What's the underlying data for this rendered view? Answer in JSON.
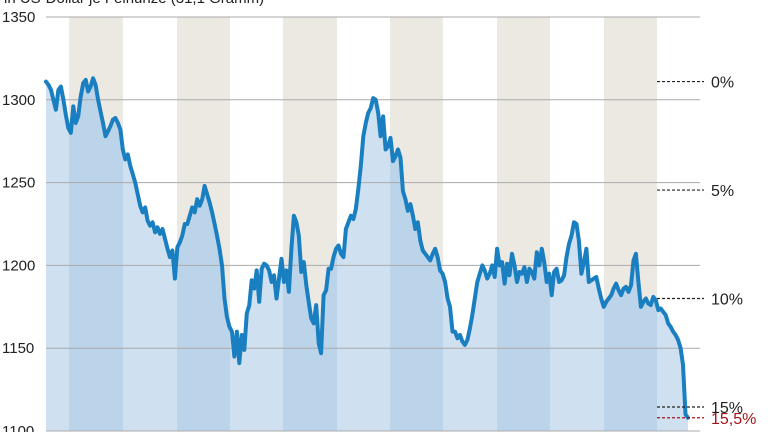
{
  "chart_data": {
    "type": "area",
    "title": "",
    "subtitle": "in US-Dollar je Feinunze (31,1 Gramm)",
    "xlabel": "",
    "ylabel": "",
    "ylim": [
      1100,
      1350
    ],
    "yticks": [
      1100,
      1150,
      1200,
      1250,
      1300,
      1350
    ],
    "grid": true,
    "colors": {
      "line": "#1a7fc1",
      "area": "#cfe0f0",
      "area_shaded": "#bcd4ea",
      "stripe": "#ece8e2",
      "grid": "#aaaaaa",
      "alert": "#a3151a"
    },
    "drawdown_reference": 1311,
    "drawdown_markers": [
      {
        "label": "0%",
        "value": 1311,
        "alert": false
      },
      {
        "label": "5%",
        "value": 1245.5,
        "alert": false
      },
      {
        "label": "10%",
        "value": 1180,
        "alert": false
      },
      {
        "label": "15%",
        "value": 1114.5,
        "alert": false
      },
      {
        "label": "15,5%",
        "value": 1108,
        "alert": true
      }
    ],
    "series": [
      {
        "values": [
          1311,
          1309,
          1306,
          1300,
          1294,
          1306,
          1308,
          1300,
          1291,
          1283,
          1280,
          1296,
          1286,
          1290,
          1302,
          1310,
          1312,
          1305,
          1308,
          1313,
          1309,
          1300,
          1293,
          1286,
          1278,
          1281,
          1284,
          1288,
          1289,
          1286,
          1282,
          1270,
          1264,
          1267,
          1260,
          1255,
          1250,
          1243,
          1236,
          1232,
          1235,
          1227,
          1224,
          1226,
          1220,
          1223,
          1219,
          1222,
          1216,
          1210,
          1205,
          1209,
          1192,
          1211,
          1214,
          1218,
          1225,
          1225,
          1230,
          1235,
          1232,
          1240,
          1236,
          1240,
          1248,
          1243,
          1238,
          1232,
          1225,
          1218,
          1210,
          1200,
          1180,
          1169,
          1163,
          1160,
          1145,
          1160,
          1141,
          1158,
          1149,
          1171,
          1176,
          1191,
          1186,
          1197,
          1178,
          1198,
          1201,
          1200,
          1197,
          1190,
          1194,
          1180,
          1192,
          1204,
          1190,
          1197,
          1184,
          1210,
          1230,
          1226,
          1218,
          1196,
          1202,
          1188,
          1178,
          1168,
          1165,
          1176,
          1153,
          1147,
          1182,
          1185,
          1198,
          1198,
          1205,
          1210,
          1212,
          1207,
          1205,
          1222,
          1226,
          1230,
          1228,
          1234,
          1246,
          1260,
          1278,
          1286,
          1292,
          1295,
          1301,
          1300,
          1292,
          1278,
          1290,
          1270,
          1272,
          1277,
          1263,
          1266,
          1270,
          1265,
          1245,
          1240,
          1233,
          1237,
          1230,
          1222,
          1226,
          1215,
          1209,
          1207,
          1205,
          1203,
          1207,
          1210,
          1205,
          1197,
          1195,
          1190,
          1180,
          1175,
          1160,
          1160,
          1156,
          1158,
          1154,
          1152,
          1155,
          1162,
          1170,
          1180,
          1190,
          1195,
          1200,
          1197,
          1192,
          1195,
          1200,
          1193,
          1210,
          1200,
          1202,
          1189,
          1201,
          1194,
          1207,
          1200,
          1190,
          1196,
          1195,
          1199,
          1190,
          1198,
          1196,
          1192,
          1208,
          1200,
          1210,
          1202,
          1190,
          1195,
          1182,
          1196,
          1198,
          1190,
          1191,
          1194,
          1205,
          1213,
          1218,
          1226,
          1225,
          1215,
          1195,
          1202,
          1210,
          1190,
          1191,
          1192,
          1193,
          1186,
          1180,
          1175,
          1178,
          1180,
          1182,
          1186,
          1189,
          1185,
          1182,
          1186,
          1187,
          1184,
          1188,
          1203,
          1207,
          1190,
          1175,
          1178,
          1180,
          1177,
          1176,
          1181,
          1179,
          1173,
          1174,
          1172,
          1170,
          1165,
          1163,
          1160,
          1158,
          1155,
          1150,
          1140,
          1110,
          1108
        ]
      }
    ]
  }
}
